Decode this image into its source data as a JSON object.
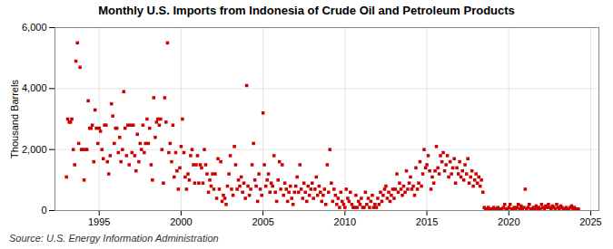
{
  "chart_data": {
    "type": "scatter",
    "title": "Monthly U.S. Imports from Indonesia of Crude Oil and Petroleum Products",
    "ylabel": "Thousand Barrels",
    "annotations": [
      "Source: U.S. Energy Information Administration"
    ],
    "color": "#CC0000",
    "marker": "square",
    "grid": true,
    "xlim": [
      1992.3,
      2025.5
    ],
    "xticks": [
      1995,
      2000,
      2005,
      2010,
      2015,
      2020,
      2025
    ],
    "ylim": [
      0,
      6000
    ],
    "yticks": [
      0,
      {
        "value": 2000,
        "label": "2,000"
      },
      {
        "value": 4000,
        "label": "4,000"
      },
      {
        "value": 6000,
        "label": "6,000"
      }
    ],
    "x": [
      1993.0,
      1993.08,
      1993.17,
      1993.25,
      1993.33,
      1993.42,
      1993.5,
      1993.58,
      1993.67,
      1993.75,
      1993.83,
      1993.92,
      1994.0,
      1994.08,
      1994.17,
      1994.25,
      1994.33,
      1994.42,
      1994.5,
      1994.58,
      1994.67,
      1994.75,
      1994.83,
      1994.92,
      1995.0,
      1995.08,
      1995.17,
      1995.25,
      1995.33,
      1995.42,
      1995.5,
      1995.58,
      1995.67,
      1995.75,
      1995.83,
      1995.92,
      1996.0,
      1996.08,
      1996.17,
      1996.25,
      1996.33,
      1996.42,
      1996.5,
      1996.58,
      1996.67,
      1996.75,
      1996.83,
      1996.92,
      1997.0,
      1997.08,
      1997.17,
      1997.25,
      1997.33,
      1997.42,
      1997.5,
      1997.58,
      1997.67,
      1997.75,
      1997.83,
      1997.92,
      1998.0,
      1998.08,
      1998.17,
      1998.25,
      1998.33,
      1998.42,
      1998.5,
      1998.58,
      1998.67,
      1998.75,
      1998.83,
      1998.92,
      1999.0,
      1999.08,
      1999.17,
      1999.25,
      1999.33,
      1999.42,
      1999.5,
      1999.58,
      1999.67,
      1999.75,
      1999.83,
      1999.92,
      2000.0,
      2000.08,
      2000.17,
      2000.25,
      2000.33,
      2000.42,
      2000.5,
      2000.58,
      2000.67,
      2000.75,
      2000.83,
      2000.92,
      2001.0,
      2001.08,
      2001.17,
      2001.25,
      2001.33,
      2001.42,
      2001.5,
      2001.58,
      2001.67,
      2001.75,
      2001.83,
      2001.92,
      2002.0,
      2002.08,
      2002.17,
      2002.25,
      2002.33,
      2002.42,
      2002.5,
      2002.58,
      2002.67,
      2002.75,
      2002.83,
      2002.92,
      2003.0,
      2003.08,
      2003.17,
      2003.25,
      2003.33,
      2003.42,
      2003.5,
      2003.58,
      2003.67,
      2003.75,
      2003.83,
      2003.92,
      2004.0,
      2004.08,
      2004.17,
      2004.25,
      2004.33,
      2004.42,
      2004.5,
      2004.58,
      2004.67,
      2004.75,
      2004.83,
      2004.92,
      2005.0,
      2005.08,
      2005.17,
      2005.25,
      2005.33,
      2005.42,
      2005.5,
      2005.58,
      2005.67,
      2005.75,
      2005.83,
      2005.92,
      2006.0,
      2006.08,
      2006.17,
      2006.25,
      2006.33,
      2006.42,
      2006.5,
      2006.58,
      2006.67,
      2006.75,
      2006.83,
      2006.92,
      2007.0,
      2007.08,
      2007.17,
      2007.25,
      2007.33,
      2007.42,
      2007.5,
      2007.58,
      2007.67,
      2007.75,
      2007.83,
      2007.92,
      2008.0,
      2008.08,
      2008.17,
      2008.25,
      2008.33,
      2008.42,
      2008.5,
      2008.58,
      2008.67,
      2008.75,
      2008.83,
      2008.92,
      2009.0,
      2009.08,
      2009.17,
      2009.25,
      2009.33,
      2009.42,
      2009.5,
      2009.58,
      2009.67,
      2009.75,
      2009.83,
      2009.92,
      2010.0,
      2010.08,
      2010.17,
      2010.25,
      2010.33,
      2010.42,
      2010.5,
      2010.58,
      2010.67,
      2010.75,
      2010.83,
      2010.92,
      2011.0,
      2011.08,
      2011.17,
      2011.25,
      2011.33,
      2011.42,
      2011.5,
      2011.58,
      2011.67,
      2011.75,
      2011.83,
      2011.92,
      2012.0,
      2012.08,
      2012.17,
      2012.25,
      2012.33,
      2012.42,
      2012.5,
      2012.58,
      2012.67,
      2012.75,
      2012.83,
      2012.92,
      2013.0,
      2013.08,
      2013.17,
      2013.25,
      2013.33,
      2013.42,
      2013.5,
      2013.58,
      2013.67,
      2013.75,
      2013.83,
      2013.92,
      2014.0,
      2014.08,
      2014.17,
      2014.25,
      2014.33,
      2014.42,
      2014.5,
      2014.58,
      2014.67,
      2014.75,
      2014.83,
      2014.92,
      2015.0,
      2015.08,
      2015.17,
      2015.25,
      2015.33,
      2015.42,
      2015.5,
      2015.58,
      2015.67,
      2015.75,
      2015.83,
      2015.92,
      2016.0,
      2016.08,
      2016.17,
      2016.25,
      2016.33,
      2016.42,
      2016.5,
      2016.58,
      2016.67,
      2016.75,
      2016.83,
      2016.92,
      2017.0,
      2017.08,
      2017.17,
      2017.25,
      2017.33,
      2017.42,
      2017.5,
      2017.58,
      2017.67,
      2017.75,
      2017.83,
      2017.92,
      2018.0,
      2018.08,
      2018.17,
      2018.25,
      2018.33,
      2018.42,
      2018.5,
      2018.58,
      2018.67,
      2018.75,
      2018.83,
      2018.92,
      2019.0,
      2019.08,
      2019.17,
      2019.25,
      2019.33,
      2019.42,
      2019.5,
      2019.58,
      2019.67,
      2019.75,
      2019.83,
      2019.92,
      2020.0,
      2020.08,
      2020.17,
      2020.25,
      2020.33,
      2020.42,
      2020.5,
      2020.58,
      2020.67,
      2020.75,
      2020.83,
      2020.92,
      2021.0,
      2021.08,
      2021.17,
      2021.25,
      2021.33,
      2021.42,
      2021.5,
      2021.58,
      2021.67,
      2021.75,
      2021.83,
      2021.92,
      2022.0,
      2022.08,
      2022.17,
      2022.25,
      2022.33,
      2022.42,
      2022.5,
      2022.58,
      2022.67,
      2022.75,
      2022.83,
      2022.92,
      2023.0,
      2023.08,
      2023.17,
      2023.25,
      2023.33,
      2023.42,
      2023.5,
      2023.58,
      2023.67,
      2023.75,
      2023.83,
      2023.92,
      2024.0,
      2024.08,
      2024.17,
      2024.25
    ],
    "values": [
      1100,
      3000,
      2900,
      2900,
      3000,
      2000,
      1500,
      4900,
      5500,
      2200,
      4700,
      2000,
      2000,
      1000,
      2000,
      2000,
      3600,
      2700,
      2700,
      2800,
      1600,
      3300,
      2700,
      2200,
      2700,
      2600,
      2000,
      1700,
      2800,
      2800,
      1600,
      1200,
      1800,
      3500,
      3100,
      2200,
      2700,
      2700,
      1900,
      2400,
      1600,
      2000,
      3900,
      2700,
      1800,
      2800,
      1500,
      2800,
      1900,
      2800,
      1800,
      1300,
      2500,
      1600,
      2200,
      2000,
      2800,
      1900,
      2200,
      3000,
      2200,
      2700,
      1500,
      1000,
      3700,
      2400,
      2900,
      3000,
      2800,
      3000,
      2000,
      900,
      3700,
      2900,
      5500,
      1900,
      2200,
      1600,
      2800,
      1100,
      1900,
      1300,
      700,
      1400,
      2100,
      3000,
      1900,
      1100,
      700,
      1200,
      1000,
      1800,
      2000,
      1500,
      900,
      1500,
      1800,
      900,
      1500,
      1400,
      900,
      2000,
      1500,
      1200,
      600,
      1000,
      800,
      1200,
      700,
      1200,
      400,
      1700,
      700,
      1600,
      300,
      500,
      400,
      200,
      800,
      1200,
      1800,
      700,
      500,
      2100,
      1500,
      700,
      1000,
      800,
      1100,
      600,
      900,
      400,
      4100,
      800,
      500,
      700,
      1500,
      2200,
      1000,
      800,
      300,
      1200,
      700,
      500,
      3200,
      1500,
      800,
      1000,
      1200,
      600,
      900,
      800,
      1800,
      600,
      300,
      1000,
      1600,
      700,
      1500,
      500,
      900,
      700,
      300,
      600,
      800,
      400,
      200,
      600,
      800,
      1100,
      600,
      1500,
      700,
      400,
      900,
      600,
      300,
      800,
      500,
      700,
      900,
      400,
      700,
      1100,
      500,
      800,
      600,
      300,
      500,
      700,
      200,
      1500,
      600,
      2000,
      900,
      300,
      700,
      500,
      200,
      400,
      100,
      600,
      300,
      200,
      100,
      700,
      400,
      300,
      600,
      200,
      100,
      100,
      500,
      100,
      300,
      200,
      400,
      100,
      100,
      600,
      200,
      400,
      100,
      300,
      500,
      100,
      200,
      100,
      400,
      200,
      600,
      300,
      500,
      700,
      800,
      400,
      600,
      300,
      500,
      700,
      400,
      700,
      1200,
      600,
      900,
      700,
      500,
      800,
      600,
      1300,
      700,
      900,
      1100,
      700,
      800,
      500,
      1400,
      700,
      900,
      1600,
      800,
      1200,
      2000,
      1400,
      1500,
      1800,
      1300,
      700,
      1100,
      900,
      1300,
      2100,
      1400,
      1200,
      1800,
      1600,
      1900,
      1300,
      1500,
      1800,
      1100,
      1600,
      1200,
      1400,
      1700,
      900,
      1400,
      1200,
      1600,
      1100,
      1300,
      1000,
      1500,
      1200,
      1700,
      900,
      1100,
      1300,
      800,
      1000,
      1200,
      900,
      1100,
      800,
      1000,
      600,
      100,
      50,
      50,
      100,
      50,
      50,
      50,
      100,
      50,
      50,
      100,
      50,
      50,
      50,
      100,
      200,
      50,
      50,
      100,
      200,
      50,
      50,
      100,
      50,
      100,
      200,
      50,
      150,
      50,
      100,
      700,
      50,
      100,
      200,
      50,
      50,
      100,
      50,
      150,
      50,
      100,
      50,
      200,
      100,
      50,
      150,
      100,
      200,
      100,
      50,
      150,
      100,
      50,
      200,
      100,
      50,
      150,
      100,
      50,
      50,
      100,
      50,
      50,
      100,
      150,
      50,
      100,
      50,
      50,
      50
    ]
  }
}
